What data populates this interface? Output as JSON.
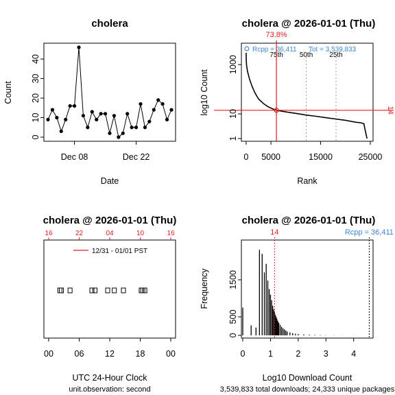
{
  "colors": {
    "red": "#e41a1c",
    "blue": "#3a86d6",
    "grey": "#9a9a9a"
  },
  "chart_data": [
    {
      "id": "p1",
      "type": "line",
      "title": "cholera",
      "xlabel": "Date",
      "ylabel": "Count",
      "x_ticks": [
        "Dec 08",
        "Dec 22"
      ],
      "x_tick_days": [
        8,
        22
      ],
      "x_start_day": 2,
      "y_ticks": [
        "0",
        "10",
        "20",
        "30",
        "40"
      ],
      "ylim": [
        0,
        46
      ],
      "values": [
        9,
        14,
        10,
        3,
        9,
        16,
        16,
        46,
        11,
        5,
        13,
        9,
        12,
        12,
        2,
        11,
        0,
        2,
        12,
        5,
        5,
        17,
        5,
        8,
        14,
        19,
        17,
        9,
        14
      ]
    },
    {
      "id": "p2",
      "type": "line",
      "title": "cholera @ 2026-01-01 (Thu)",
      "xlabel": "Rank",
      "ylabel": "log10 Count",
      "x_ticks": [
        "0",
        "5000",
        "15000",
        "25000"
      ],
      "x_tick_values": [
        0,
        5000,
        15000,
        25000
      ],
      "y_ticks": [
        "1",
        "10",
        "1000"
      ],
      "y_tick_values": [
        1,
        10,
        1000
      ],
      "top_label": "73.8%",
      "right_label": "14",
      "legend_rcpp": "Rcpp = 36,411",
      "legend_tot": "Tot = 3,539,833",
      "percentiles": [
        "75th",
        "50th",
        "25th"
      ],
      "percentile_ranks": [
        6100,
        12100,
        18100
      ],
      "package_rank": 6100,
      "package_count": 14,
      "xlim": [
        -400,
        25000
      ],
      "ylog_range": [
        0,
        3.7
      ],
      "curve": [
        [
          1,
          3000
        ],
        [
          30,
          1500
        ],
        [
          100,
          900
        ],
        [
          300,
          500
        ],
        [
          700,
          250
        ],
        [
          1200,
          130
        ],
        [
          1800,
          70
        ],
        [
          2500,
          40
        ],
        [
          3500,
          26
        ],
        [
          4500,
          19
        ],
        [
          5500,
          15.5
        ],
        [
          6100,
          14
        ],
        [
          8000,
          12
        ],
        [
          10000,
          10.5
        ],
        [
          12000,
          9
        ],
        [
          14000,
          8
        ],
        [
          16000,
          7
        ],
        [
          18000,
          6.2
        ],
        [
          20000,
          5.5
        ],
        [
          22000,
          4.6
        ],
        [
          23000,
          4.4
        ],
        [
          23700,
          4
        ],
        [
          24000,
          2
        ],
        [
          24333,
          1
        ]
      ]
    },
    {
      "id": "p3",
      "type": "scatter",
      "title": "cholera @ 2026-01-01 (Thu)",
      "xlabel": "UTC 24-Hour Clock",
      "sublabel": "unit.observation: second",
      "x_ticks": [
        "00",
        "06",
        "12",
        "18",
        "00"
      ],
      "x_tick_hours": [
        0,
        6,
        12,
        18,
        24
      ],
      "top_ticks": [
        "16",
        "22",
        "04",
        "10",
        "16"
      ],
      "legend": "12/31 - 01/01 PST",
      "points_hours": [
        2.2,
        2.5,
        4.2,
        8.5,
        9.1,
        11.6,
        12.9,
        14.7,
        18.2,
        18.5,
        18.9
      ]
    },
    {
      "id": "p4",
      "type": "bar",
      "title": "cholera @ 2026-01-01 (Thu)",
      "xlabel": "Log10 Download Count",
      "ylabel": "Frequency",
      "sublabel": "3,539,833 total downloads; 24,333 unique packages",
      "x_ticks": [
        "0",
        "1",
        "2",
        "3",
        "4"
      ],
      "y_ticks": [
        "0",
        "500",
        "1500"
      ],
      "y_tick_values": [
        0,
        500,
        1500
      ],
      "ylim": [
        0,
        2500
      ],
      "xlim": [
        -0.05,
        4.7
      ],
      "red_label": "14",
      "red_x": 1.146,
      "blue_label": "Rcpp = 36,411",
      "blue_x": 4.561,
      "bars": [
        [
          0,
          750
        ],
        [
          0.301,
          270
        ],
        [
          0.477,
          210
        ],
        [
          0.602,
          2310
        ],
        [
          0.699,
          2200
        ],
        [
          0.778,
          1700
        ],
        [
          0.845,
          1930
        ],
        [
          0.903,
          1480
        ],
        [
          0.954,
          1250
        ],
        [
          1.0,
          1100
        ],
        [
          1.041,
          950
        ],
        [
          1.079,
          800
        ],
        [
          1.114,
          700
        ],
        [
          1.146,
          640
        ],
        [
          1.176,
          560
        ],
        [
          1.204,
          500
        ],
        [
          1.23,
          450
        ],
        [
          1.255,
          400
        ],
        [
          1.279,
          360
        ],
        [
          1.301,
          330
        ],
        [
          1.35,
          280
        ],
        [
          1.4,
          230
        ],
        [
          1.45,
          190
        ],
        [
          1.5,
          160
        ],
        [
          1.55,
          130
        ],
        [
          1.6,
          105
        ],
        [
          1.7,
          80
        ],
        [
          1.8,
          60
        ],
        [
          1.9,
          45
        ],
        [
          2.0,
          35
        ],
        [
          2.2,
          25
        ],
        [
          2.4,
          18
        ],
        [
          2.6,
          12
        ],
        [
          2.8,
          8
        ],
        [
          3.0,
          6
        ],
        [
          3.3,
          4
        ],
        [
          3.6,
          3
        ],
        [
          4.0,
          2
        ]
      ]
    }
  ]
}
